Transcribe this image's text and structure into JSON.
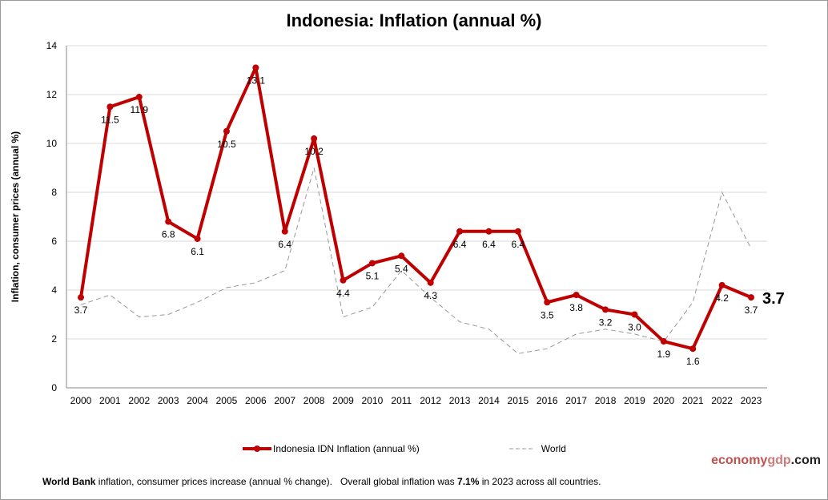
{
  "chart_data": {
    "type": "line",
    "title": "Indonesia: Inflation (annual %)",
    "ylabel": "Inflation, consumer prices (annual %)",
    "xlabel": "",
    "ylim": [
      0,
      14
    ],
    "yticks": [
      0,
      2,
      4,
      6,
      8,
      10,
      12,
      14
    ],
    "grid": true,
    "legend_position": "bottom",
    "categories": [
      "2000",
      "2001",
      "2002",
      "2003",
      "2004",
      "2005",
      "2006",
      "2007",
      "2008",
      "2009",
      "2010",
      "2011",
      "2012",
      "2013",
      "2014",
      "2015",
      "2016",
      "2017",
      "2018",
      "2019",
      "2020",
      "2021",
      "2022",
      "2023"
    ],
    "series": [
      {
        "name": "Indonesia IDN Inflation (annual %)",
        "color": "#c00000",
        "style": "solid-markers",
        "values": [
          3.7,
          11.5,
          11.9,
          6.8,
          6.1,
          10.5,
          13.1,
          6.4,
          10.2,
          4.4,
          5.1,
          5.4,
          4.3,
          6.4,
          6.4,
          6.4,
          3.5,
          3.8,
          3.2,
          3.0,
          1.9,
          1.6,
          4.2,
          3.7
        ],
        "labels": [
          "3.7",
          "11.5",
          "11.9",
          "6.8",
          "6.1",
          "10.5",
          "13.1",
          "6.4",
          "10.2",
          "4.4",
          "5.1",
          "5.4",
          "4.3",
          "6.4",
          "6.4",
          "6.4",
          "3.5",
          "3.8",
          "3.2",
          "3.0",
          "1.9",
          "1.6",
          "4.2",
          "3.7"
        ]
      },
      {
        "name": "World",
        "color": "#999999",
        "style": "dashed",
        "values": [
          3.4,
          3.8,
          2.9,
          3.0,
          3.5,
          4.1,
          4.3,
          4.8,
          9.0,
          2.9,
          3.3,
          4.8,
          3.7,
          2.7,
          2.4,
          1.4,
          1.6,
          2.2,
          2.4,
          2.2,
          1.9,
          3.5,
          8.0,
          5.7
        ]
      }
    ],
    "last_value_label": "3.7"
  },
  "brand": {
    "part1": "economy",
    "part2": "gdp",
    "part3": ".com"
  },
  "footer": {
    "bold1": "World Bank",
    "text1": " inflation, consumer prices increase (annual % change).   Overall global inflation was ",
    "bold2": "7.1%",
    "text2": " in 2023 across all countries."
  }
}
